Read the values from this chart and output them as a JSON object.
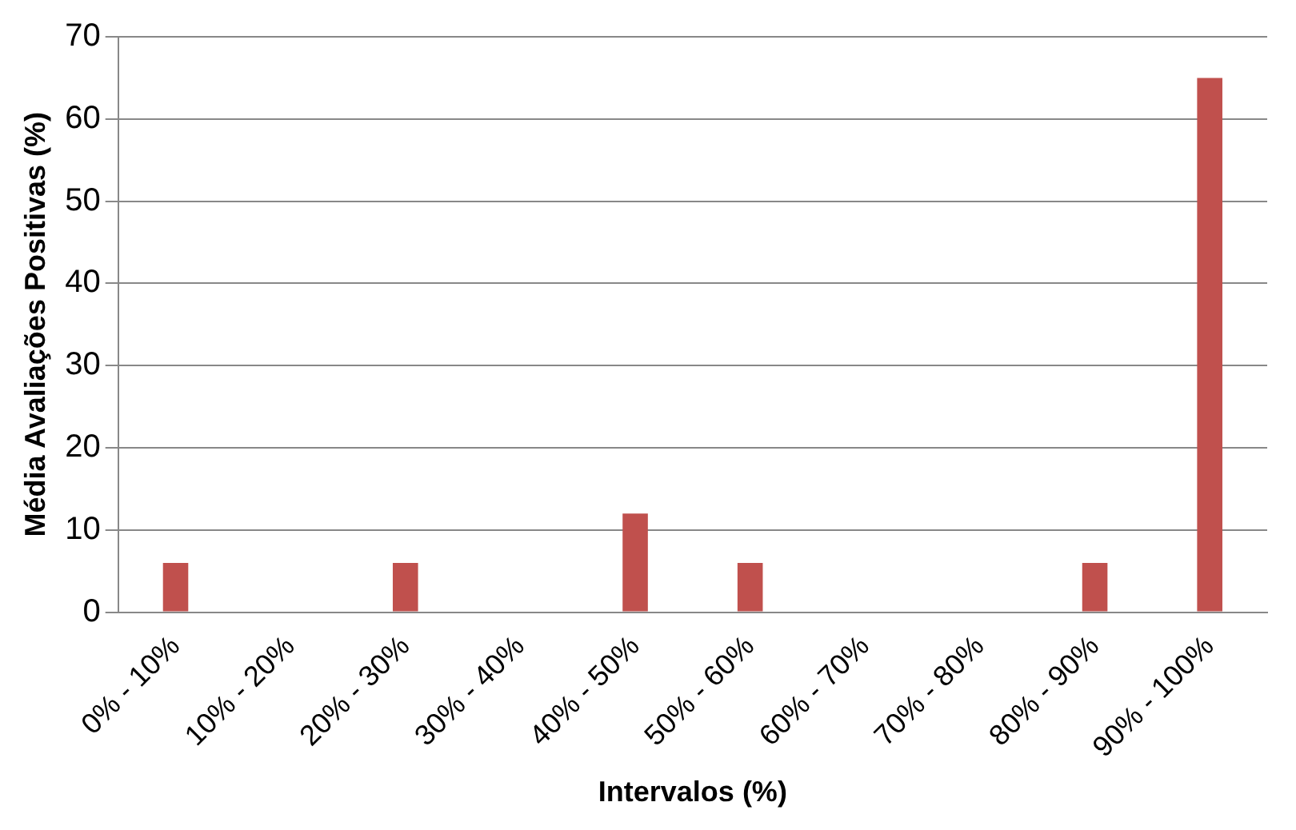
{
  "chart_data": {
    "type": "bar",
    "xlabel": "Intervalos (%)",
    "ylabel": "Média Avaliações Positivas (%)",
    "categories": [
      "0% - 10%",
      "10% - 20%",
      "20% - 30%",
      "30% - 40%",
      "40% - 50%",
      "50% - 60%",
      "60% - 70%",
      "70% - 80%",
      "80% - 90%",
      "90% - 100%"
    ],
    "values": [
      6,
      0,
      6,
      0,
      12,
      6,
      0,
      0,
      6,
      65
    ],
    "color": "#c0504d",
    "ylim": [
      0,
      70
    ],
    "yticks": [
      0,
      10,
      20,
      30,
      40,
      50,
      60,
      70
    ],
    "grid": "y",
    "legend": false
  }
}
